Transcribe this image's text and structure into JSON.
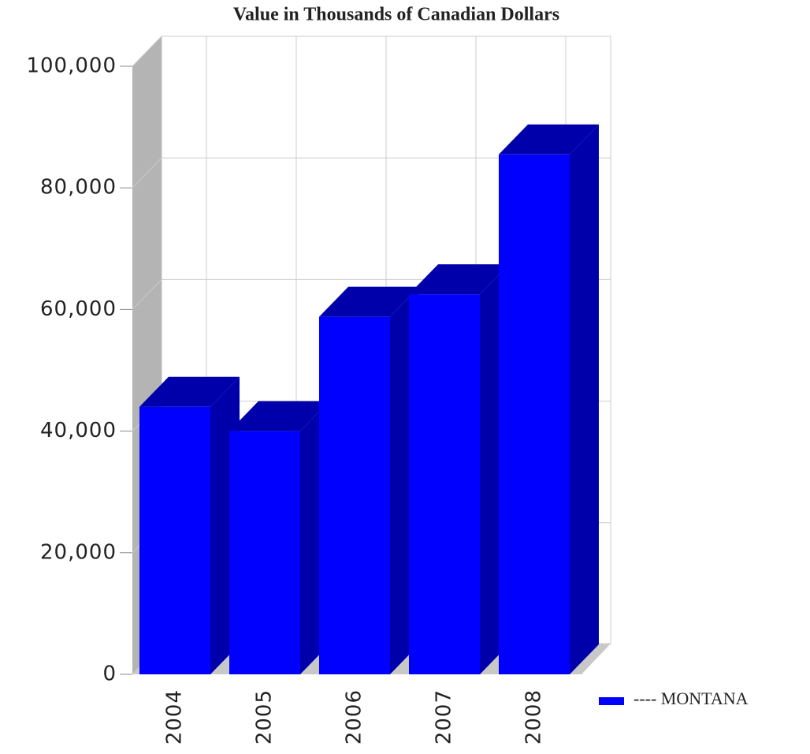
{
  "chart_data": {
    "type": "bar3d",
    "title": "Value in Thousands of Canadian Dollars",
    "categories": [
      "2004",
      "2005",
      "2006",
      "2007",
      "2008"
    ],
    "series": [
      {
        "name": "---- MONTANA",
        "color": "#0000ff",
        "values": [
          44000,
          40000,
          58800,
          62500,
          85500
        ]
      }
    ],
    "ylim": [
      0,
      100000
    ],
    "yticks": [
      0,
      {
        "value": 20000,
        "label": "20,000"
      },
      {
        "value": 40000,
        "label": "40,000"
      },
      {
        "value": 60000,
        "label": "60,000"
      },
      {
        "value": 80000,
        "label": "80,000"
      },
      {
        "value": 100000,
        "label": "100,000"
      }
    ],
    "grid": true
  }
}
